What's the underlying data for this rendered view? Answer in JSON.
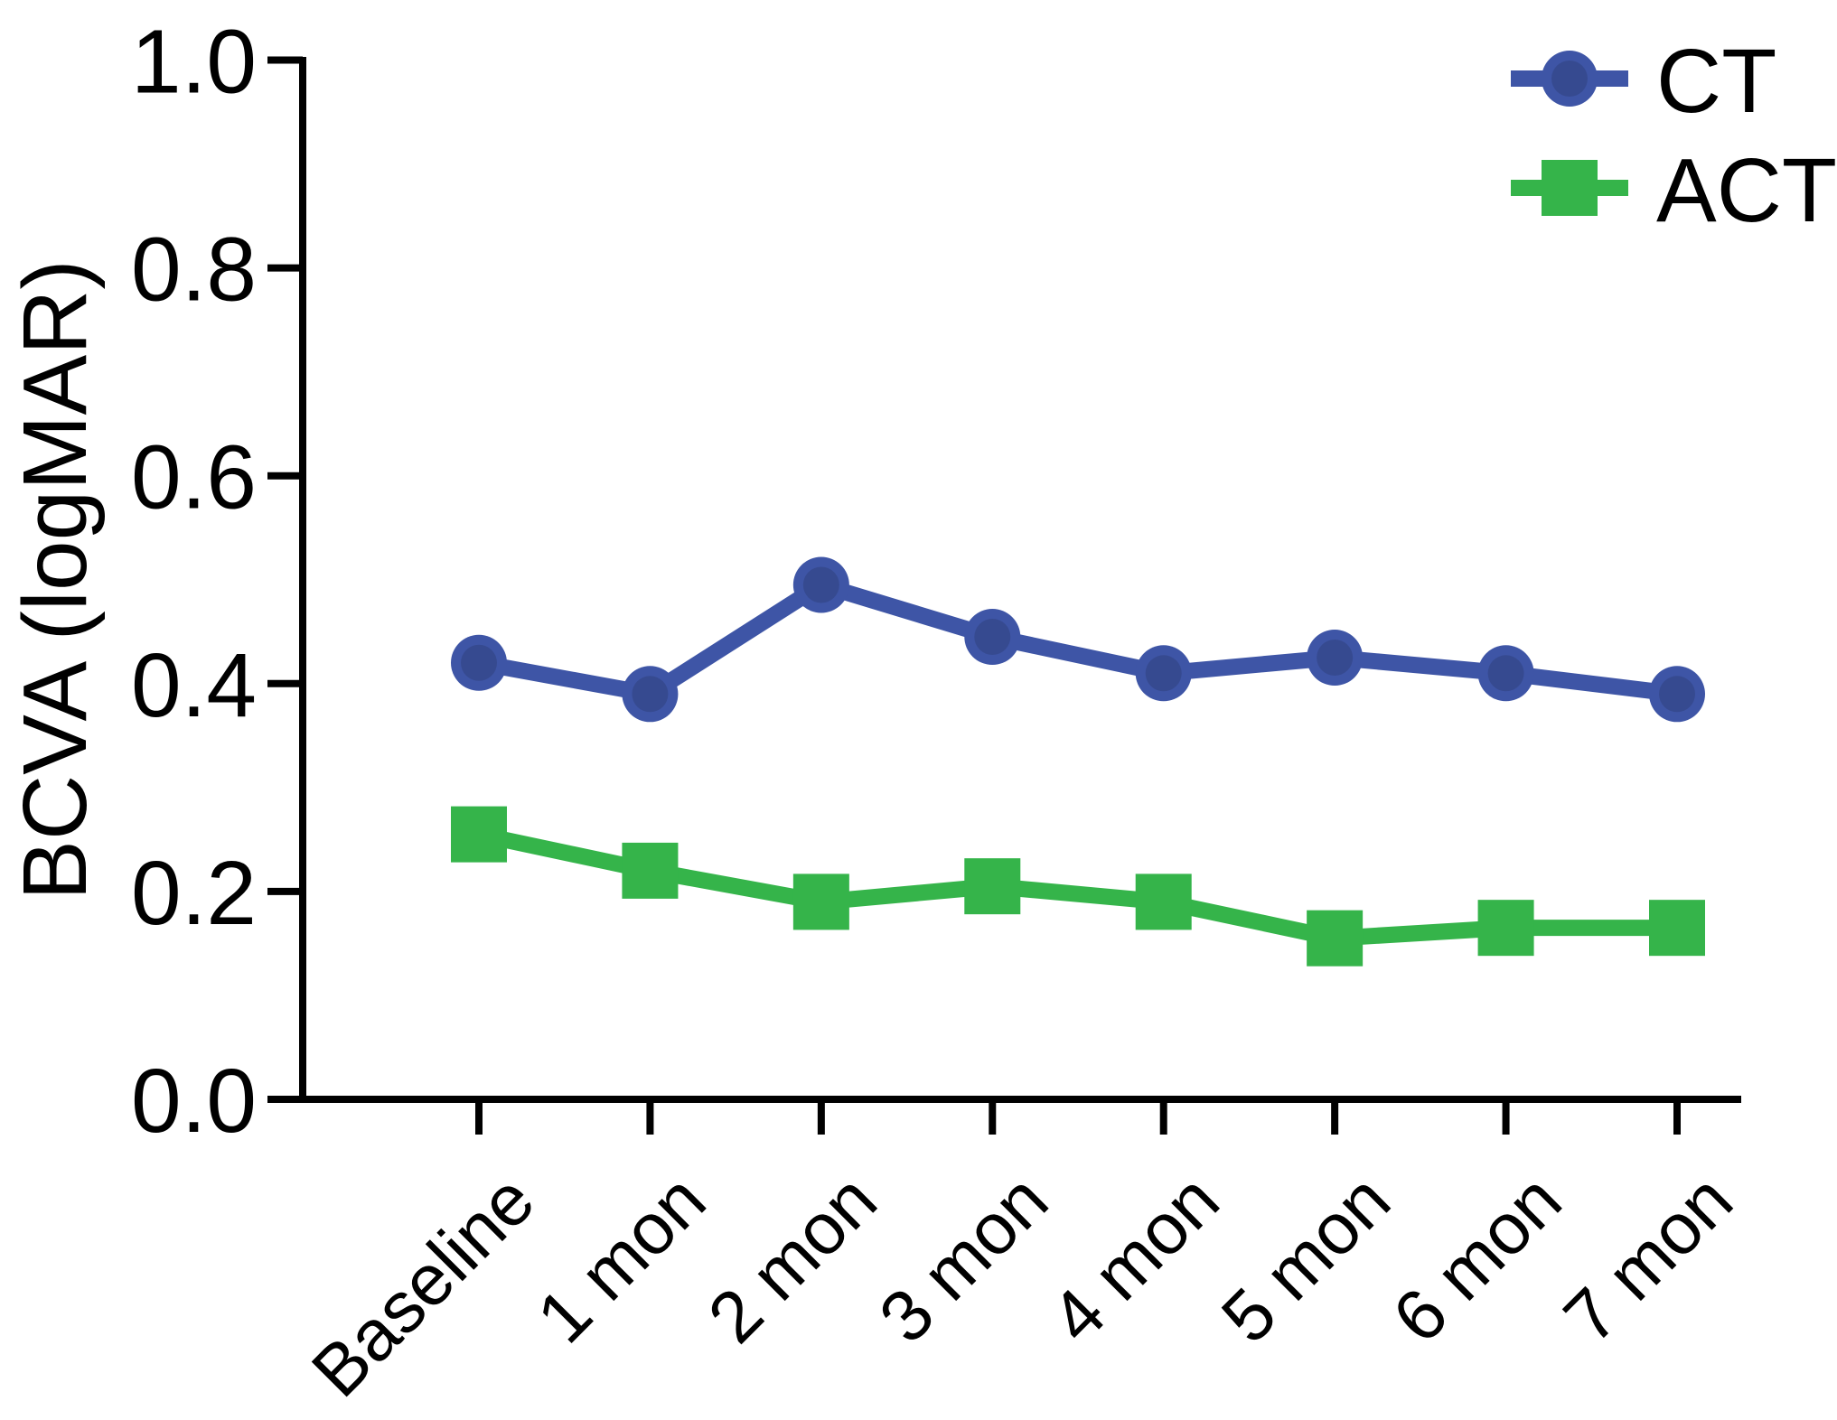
{
  "figure": {
    "background": "#ffffff",
    "description_label": "BCVA (logMAR) over follow-up time for CT and ACT groups"
  },
  "chart_data": {
    "type": "line",
    "title": "",
    "categories": [
      "Baseline",
      "1 mon",
      "2 mon",
      "3 mon",
      "4 mon",
      "5 mon",
      "6 mon",
      "7 mon"
    ],
    "series": [
      {
        "name": "CT",
        "color": "#3E55A6",
        "marker": "circle",
        "values": [
          0.42,
          0.39,
          0.495,
          0.445,
          0.41,
          0.425,
          0.41,
          0.39
        ]
      },
      {
        "name": "ACT",
        "color": "#35B44A",
        "marker": "square",
        "values": [
          0.255,
          0.22,
          0.19,
          0.205,
          0.19,
          0.155,
          0.165,
          0.165
        ]
      }
    ],
    "xlabel": "",
    "ylabel": "BCVA (logMAR)",
    "ylim": [
      0.0,
      1.0
    ],
    "ytick_values": [
      0.0,
      0.2,
      0.4,
      0.6,
      0.8,
      1.0
    ],
    "ytick_labels": [
      "0.0",
      "0.2",
      "0.4",
      "0.6",
      "0.8",
      "1.0"
    ],
    "grid": false,
    "legend_position": "top-right",
    "axis_color": "#000000"
  }
}
